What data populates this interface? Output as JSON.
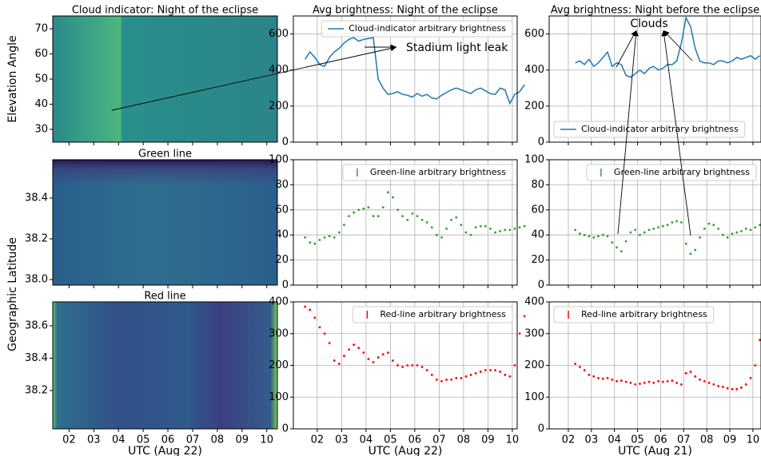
{
  "chart_data": [
    {
      "type": "image",
      "title": "Cloud indicator: Night of the eclipse",
      "ylabel": "Elevation Angle",
      "xlim": [
        1.34,
        10.43
      ],
      "ylim": [
        24.9,
        75.1
      ],
      "yticks": [
        30,
        40,
        50,
        60,
        70
      ],
      "xticks": [
        {
          "value": 2,
          "label": "02"
        },
        {
          "value": 3,
          "label": "03"
        },
        {
          "value": 4,
          "label": "04"
        },
        {
          "value": 5,
          "label": "05"
        },
        {
          "value": 6,
          "label": "06"
        },
        {
          "value": 7,
          "label": "07"
        },
        {
          "value": 8,
          "label": "08"
        },
        {
          "value": 9,
          "label": "09"
        },
        {
          "value": 10,
          "label": "10"
        }
      ],
      "xtick_labels": false,
      "grid": false
    },
    {
      "type": "line",
      "title": "Avg brightness: Night of the eclipse",
      "xlim": [
        1.02,
        10.2
      ],
      "ylim": [
        0,
        700
      ],
      "yticks": [
        0,
        200,
        400,
        600
      ],
      "xticks": [
        {
          "value": 2,
          "label": "02"
        },
        {
          "value": 3,
          "label": "03"
        },
        {
          "value": 4,
          "label": "04"
        },
        {
          "value": 5,
          "label": "05"
        },
        {
          "value": 6,
          "label": "06"
        },
        {
          "value": 7,
          "label": "07"
        },
        {
          "value": 8,
          "label": "08"
        },
        {
          "value": 9,
          "label": "09"
        },
        {
          "value": 10,
          "label": "10"
        }
      ],
      "xtick_labels": false,
      "grid": true,
      "legend": "upper right",
      "x": [
        1.5,
        1.7,
        1.9,
        2.1,
        2.3,
        2.5,
        2.7,
        2.9,
        3.1,
        3.3,
        3.5,
        3.7,
        3.9,
        4.1,
        4.3,
        4.5,
        4.7,
        4.9,
        5.1,
        5.3,
        5.5,
        5.7,
        5.9,
        6.1,
        6.3,
        6.5,
        6.7,
        6.9,
        7.1,
        7.3,
        7.5,
        7.7,
        7.9,
        8.1,
        8.3,
        8.5,
        8.7,
        8.9,
        9.1,
        9.3,
        9.5,
        9.7,
        9.9,
        10.1,
        10.3,
        10.5
      ],
      "series": [
        {
          "name": "Cloud-indicator arbitrary brightness",
          "color": "#1f77b4",
          "values": [
            460,
            500,
            470,
            430,
            420,
            470,
            500,
            520,
            550,
            570,
            580,
            560,
            570,
            575,
            580,
            350,
            300,
            265,
            270,
            280,
            265,
            260,
            250,
            270,
            255,
            265,
            245,
            240,
            260,
            275,
            290,
            300,
            290,
            280,
            270,
            290,
            300,
            285,
            270,
            265,
            300,
            290,
            215,
            265,
            280,
            320
          ]
        }
      ]
    },
    {
      "type": "line",
      "title": "Avg brightness: Night before the eclipse",
      "xlim": [
        1.17,
        10.35
      ],
      "ylim": [
        0,
        700
      ],
      "yticks": [
        0,
        200,
        400,
        600
      ],
      "xticks": [
        {
          "value": 2,
          "label": "02"
        },
        {
          "value": 3,
          "label": "03"
        },
        {
          "value": 4,
          "label": "04"
        },
        {
          "value": 5,
          "label": "05"
        },
        {
          "value": 6,
          "label": "06"
        },
        {
          "value": 7,
          "label": "07"
        },
        {
          "value": 8,
          "label": "08"
        },
        {
          "value": 9,
          "label": "09"
        },
        {
          "value": 10,
          "label": "10"
        }
      ],
      "xtick_labels": false,
      "grid": true,
      "legend": "lower left",
      "x": [
        2.3,
        2.5,
        2.7,
        2.9,
        3.1,
        3.3,
        3.5,
        3.7,
        3.9,
        4.1,
        4.3,
        4.5,
        4.7,
        4.9,
        5.1,
        5.3,
        5.5,
        5.7,
        5.9,
        6.1,
        6.3,
        6.5,
        6.7,
        6.9,
        7.1,
        7.3,
        7.5,
        7.7,
        7.9,
        8.1,
        8.3,
        8.5,
        8.7,
        8.9,
        9.1,
        9.3,
        9.5,
        9.7,
        9.9,
        10.1,
        10.3
      ],
      "series": [
        {
          "name": "Cloud-indicator arbitrary brightness",
          "color": "#1f77b4",
          "values": [
            440,
            450,
            430,
            460,
            420,
            440,
            470,
            500,
            420,
            440,
            430,
            370,
            360,
            380,
            400,
            380,
            410,
            420,
            400,
            410,
            430,
            430,
            450,
            550,
            690,
            640,
            520,
            450,
            440,
            440,
            430,
            450,
            450,
            440,
            450,
            470,
            460,
            470,
            480,
            460,
            480
          ]
        }
      ]
    },
    {
      "type": "image",
      "title": "Green line",
      "ylabel": "Geographic Latitude",
      "xlim": [
        1.34,
        10.43
      ],
      "ylim": [
        37.973,
        38.588
      ],
      "yticks": [
        {
          "value": 38.0,
          "label": "38.0"
        },
        38.2,
        38.4
      ],
      "xticks": [
        {
          "value": 2,
          "label": "02"
        },
        {
          "value": 3,
          "label": "03"
        },
        {
          "value": 4,
          "label": "04"
        },
        {
          "value": 5,
          "label": "05"
        },
        {
          "value": 6,
          "label": "06"
        },
        {
          "value": 7,
          "label": "07"
        },
        {
          "value": 8,
          "label": "08"
        },
        {
          "value": 9,
          "label": "09"
        },
        {
          "value": 10,
          "label": "10"
        }
      ],
      "xtick_labels": false,
      "grid": false
    },
    {
      "type": "scatter",
      "xlim": [
        1.02,
        10.2
      ],
      "ylim": [
        0,
        100
      ],
      "yticks": [
        0,
        20,
        40,
        60,
        80,
        100
      ],
      "xticks": [
        {
          "value": 2,
          "label": "02"
        },
        {
          "value": 3,
          "label": "03"
        },
        {
          "value": 4,
          "label": "04"
        },
        {
          "value": 5,
          "label": "05"
        },
        {
          "value": 6,
          "label": "06"
        },
        {
          "value": 7,
          "label": "07"
        },
        {
          "value": 8,
          "label": "08"
        },
        {
          "value": 9,
          "label": "09"
        },
        {
          "value": 10,
          "label": "10"
        }
      ],
      "xtick_labels": false,
      "grid": true,
      "legend": "upper right",
      "x": [
        1.5,
        1.7,
        1.9,
        2.1,
        2.3,
        2.5,
        2.7,
        2.9,
        3.1,
        3.3,
        3.5,
        3.7,
        3.9,
        4.1,
        4.3,
        4.5,
        4.7,
        4.9,
        5.1,
        5.3,
        5.5,
        5.7,
        5.9,
        6.1,
        6.3,
        6.5,
        6.7,
        6.9,
        7.1,
        7.3,
        7.5,
        7.7,
        7.9,
        8.1,
        8.3,
        8.5,
        8.7,
        8.9,
        9.1,
        9.3,
        9.5,
        9.7,
        9.9,
        10.1,
        10.3,
        10.5
      ],
      "series": [
        {
          "name": "Green-line arbitrary brightness",
          "color": "#2ca02c",
          "values": [
            38,
            34,
            33,
            36,
            38,
            39,
            38,
            42,
            48,
            55,
            58,
            60,
            61,
            62,
            55,
            55,
            62,
            74,
            70,
            60,
            55,
            52,
            57,
            55,
            52,
            50,
            46,
            40,
            38,
            45,
            52,
            54,
            48,
            42,
            40,
            46,
            47,
            47,
            45,
            42,
            43,
            44,
            44,
            45,
            46,
            47
          ]
        }
      ]
    },
    {
      "type": "scatter",
      "xlim": [
        1.17,
        10.35
      ],
      "ylim": [
        0,
        100
      ],
      "yticks": [
        0,
        20,
        40,
        60,
        80,
        100
      ],
      "xticks": [
        {
          "value": 2,
          "label": "02"
        },
        {
          "value": 3,
          "label": "03"
        },
        {
          "value": 4,
          "label": "04"
        },
        {
          "value": 5,
          "label": "05"
        },
        {
          "value": 6,
          "label": "06"
        },
        {
          "value": 7,
          "label": "07"
        },
        {
          "value": 8,
          "label": "08"
        },
        {
          "value": 9,
          "label": "09"
        },
        {
          "value": 10,
          "label": "10"
        }
      ],
      "xtick_labels": false,
      "grid": true,
      "legend": "upper right",
      "x": [
        2.3,
        2.5,
        2.7,
        2.9,
        3.1,
        3.3,
        3.5,
        3.7,
        3.9,
        4.1,
        4.3,
        4.5,
        4.7,
        4.9,
        5.1,
        5.3,
        5.5,
        5.7,
        5.9,
        6.1,
        6.3,
        6.5,
        6.7,
        6.9,
        7.1,
        7.3,
        7.5,
        7.7,
        7.9,
        8.1,
        8.3,
        8.5,
        8.7,
        8.9,
        9.1,
        9.3,
        9.5,
        9.7,
        9.9,
        10.1,
        10.3
      ],
      "series": [
        {
          "name": "Green-line arbitrary brightness",
          "color": "#2ca02c",
          "values": [
            44,
            41,
            40,
            39,
            38,
            39,
            40,
            39,
            34,
            30,
            27,
            35,
            42,
            44,
            40,
            42,
            44,
            45,
            46,
            47,
            48,
            50,
            51,
            50,
            33,
            25,
            28,
            38,
            45,
            49,
            48,
            45,
            40,
            38,
            41,
            42,
            43,
            45,
            44,
            46,
            48
          ]
        }
      ]
    },
    {
      "type": "image",
      "title": "Red line",
      "xlabel": "UTC (Aug 22)",
      "xlim": [
        1.34,
        10.43
      ],
      "ylim": [
        37.963,
        38.748
      ],
      "yticks": [
        38.2,
        38.4,
        38.6
      ],
      "xticks": [
        {
          "value": 2,
          "label": "02"
        },
        {
          "value": 3,
          "label": "03"
        },
        {
          "value": 4,
          "label": "04"
        },
        {
          "value": 5,
          "label": "05"
        },
        {
          "value": 6,
          "label": "06"
        },
        {
          "value": 7,
          "label": "07"
        },
        {
          "value": 8,
          "label": "08"
        },
        {
          "value": 9,
          "label": "09"
        },
        {
          "value": 10,
          "label": "10"
        }
      ],
      "xtick_labels": true,
      "grid": false
    },
    {
      "type": "scatter",
      "xlabel": "UTC (Aug 22)",
      "xlim": [
        1.02,
        10.2
      ],
      "ylim": [
        0,
        400
      ],
      "yticks": [
        0,
        100,
        200,
        300,
        400
      ],
      "xticks": [
        {
          "value": 2,
          "label": "02"
        },
        {
          "value": 3,
          "label": "03"
        },
        {
          "value": 4,
          "label": "04"
        },
        {
          "value": 5,
          "label": "05"
        },
        {
          "value": 6,
          "label": "06"
        },
        {
          "value": 7,
          "label": "07"
        },
        {
          "value": 8,
          "label": "08"
        },
        {
          "value": 9,
          "label": "09"
        },
        {
          "value": 10,
          "label": "10"
        }
      ],
      "xtick_labels": true,
      "grid": true,
      "legend": "upper right",
      "x": [
        1.5,
        1.7,
        1.9,
        2.1,
        2.3,
        2.5,
        2.7,
        2.9,
        3.1,
        3.3,
        3.5,
        3.7,
        3.9,
        4.1,
        4.3,
        4.5,
        4.7,
        4.9,
        5.1,
        5.3,
        5.5,
        5.7,
        5.9,
        6.1,
        6.3,
        6.5,
        6.7,
        6.9,
        7.1,
        7.3,
        7.5,
        7.7,
        7.9,
        8.1,
        8.3,
        8.5,
        8.7,
        8.9,
        9.1,
        9.3,
        9.5,
        9.7,
        9.9,
        10.1,
        10.3,
        10.5
      ],
      "series": [
        {
          "name": "Red-line arbitrary brightness",
          "color": "#ff0000",
          "values": [
            385,
            375,
            350,
            320,
            300,
            270,
            215,
            205,
            230,
            250,
            265,
            255,
            240,
            220,
            210,
            225,
            235,
            240,
            215,
            200,
            195,
            200,
            200,
            200,
            195,
            185,
            170,
            155,
            150,
            155,
            155,
            160,
            160,
            165,
            170,
            175,
            180,
            185,
            185,
            185,
            180,
            170,
            165,
            200,
            300,
            355
          ]
        }
      ]
    },
    {
      "type": "scatter",
      "xlabel": "UTC (Aug 21)",
      "xlim": [
        1.17,
        10.35
      ],
      "ylim": [
        0,
        400
      ],
      "yticks": [
        0,
        100,
        200,
        300,
        400
      ],
      "xticks": [
        {
          "value": 2,
          "label": "02"
        },
        {
          "value": 3,
          "label": "03"
        },
        {
          "value": 4,
          "label": "04"
        },
        {
          "value": 5,
          "label": "05"
        },
        {
          "value": 6,
          "label": "06"
        },
        {
          "value": 7,
          "label": "07"
        },
        {
          "value": 8,
          "label": "08"
        },
        {
          "value": 9,
          "label": "09"
        },
        {
          "value": 10,
          "label": "10"
        }
      ],
      "xtick_labels": true,
      "grid": true,
      "legend": "upper left",
      "x": [
        2.3,
        2.5,
        2.7,
        2.9,
        3.1,
        3.3,
        3.5,
        3.7,
        3.9,
        4.1,
        4.3,
        4.5,
        4.7,
        4.9,
        5.1,
        5.3,
        5.5,
        5.7,
        5.9,
        6.1,
        6.3,
        6.5,
        6.7,
        6.9,
        7.1,
        7.3,
        7.5,
        7.7,
        7.9,
        8.1,
        8.3,
        8.5,
        8.7,
        8.9,
        9.1,
        9.3,
        9.5,
        9.7,
        9.9,
        10.1,
        10.3
      ],
      "series": [
        {
          "name": "Red-line arbitrary brightness",
          "color": "#ff0000",
          "values": [
            205,
            195,
            185,
            170,
            165,
            160,
            158,
            160,
            155,
            150,
            152,
            148,
            145,
            140,
            142,
            145,
            148,
            145,
            150,
            148,
            150,
            152,
            145,
            140,
            175,
            180,
            165,
            155,
            150,
            145,
            140,
            135,
            132,
            128,
            125,
            125,
            130,
            140,
            160,
            200,
            280
          ]
        }
      ]
    }
  ],
  "annotations": [
    "Stadium light leak",
    "Clouds"
  ]
}
